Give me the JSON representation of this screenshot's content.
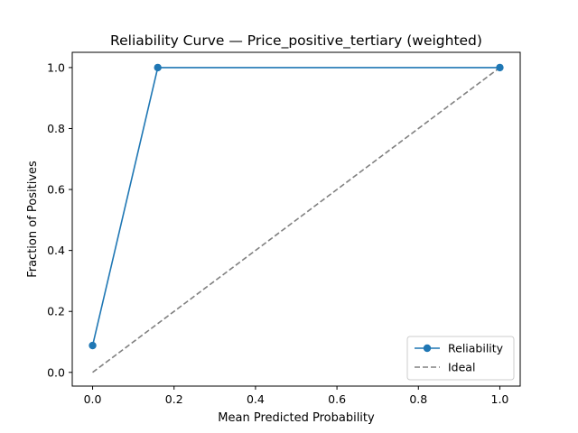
{
  "chart_data": {
    "type": "line",
    "title": "Reliability Curve — Price_positive_tertiary (weighted)",
    "xlabel": "Mean Predicted Probability",
    "ylabel": "Fraction of Positives",
    "xlim": [
      -0.05,
      1.05
    ],
    "ylim": [
      -0.045,
      1.05
    ],
    "xticks": [
      0.0,
      0.2,
      0.4,
      0.6,
      0.8,
      1.0
    ],
    "yticks": [
      0.0,
      0.2,
      0.4,
      0.6,
      0.8,
      1.0
    ],
    "xtick_labels": [
      "0.0",
      "0.2",
      "0.4",
      "0.6",
      "0.8",
      "1.0"
    ],
    "ytick_labels": [
      "0.0",
      "0.2",
      "0.4",
      "0.6",
      "0.8",
      "1.0"
    ],
    "grid": false,
    "legend_position": "lower-right",
    "series": [
      {
        "name": "Reliability",
        "style": "solid-with-markers",
        "color": "#1f77b4",
        "x": [
          0.0,
          0.16,
          1.0
        ],
        "y": [
          0.088,
          1.0,
          1.0
        ]
      },
      {
        "name": "Ideal",
        "style": "dashed",
        "color": "#808080",
        "x": [
          0.0,
          1.0
        ],
        "y": [
          0.0,
          1.0
        ]
      }
    ]
  }
}
